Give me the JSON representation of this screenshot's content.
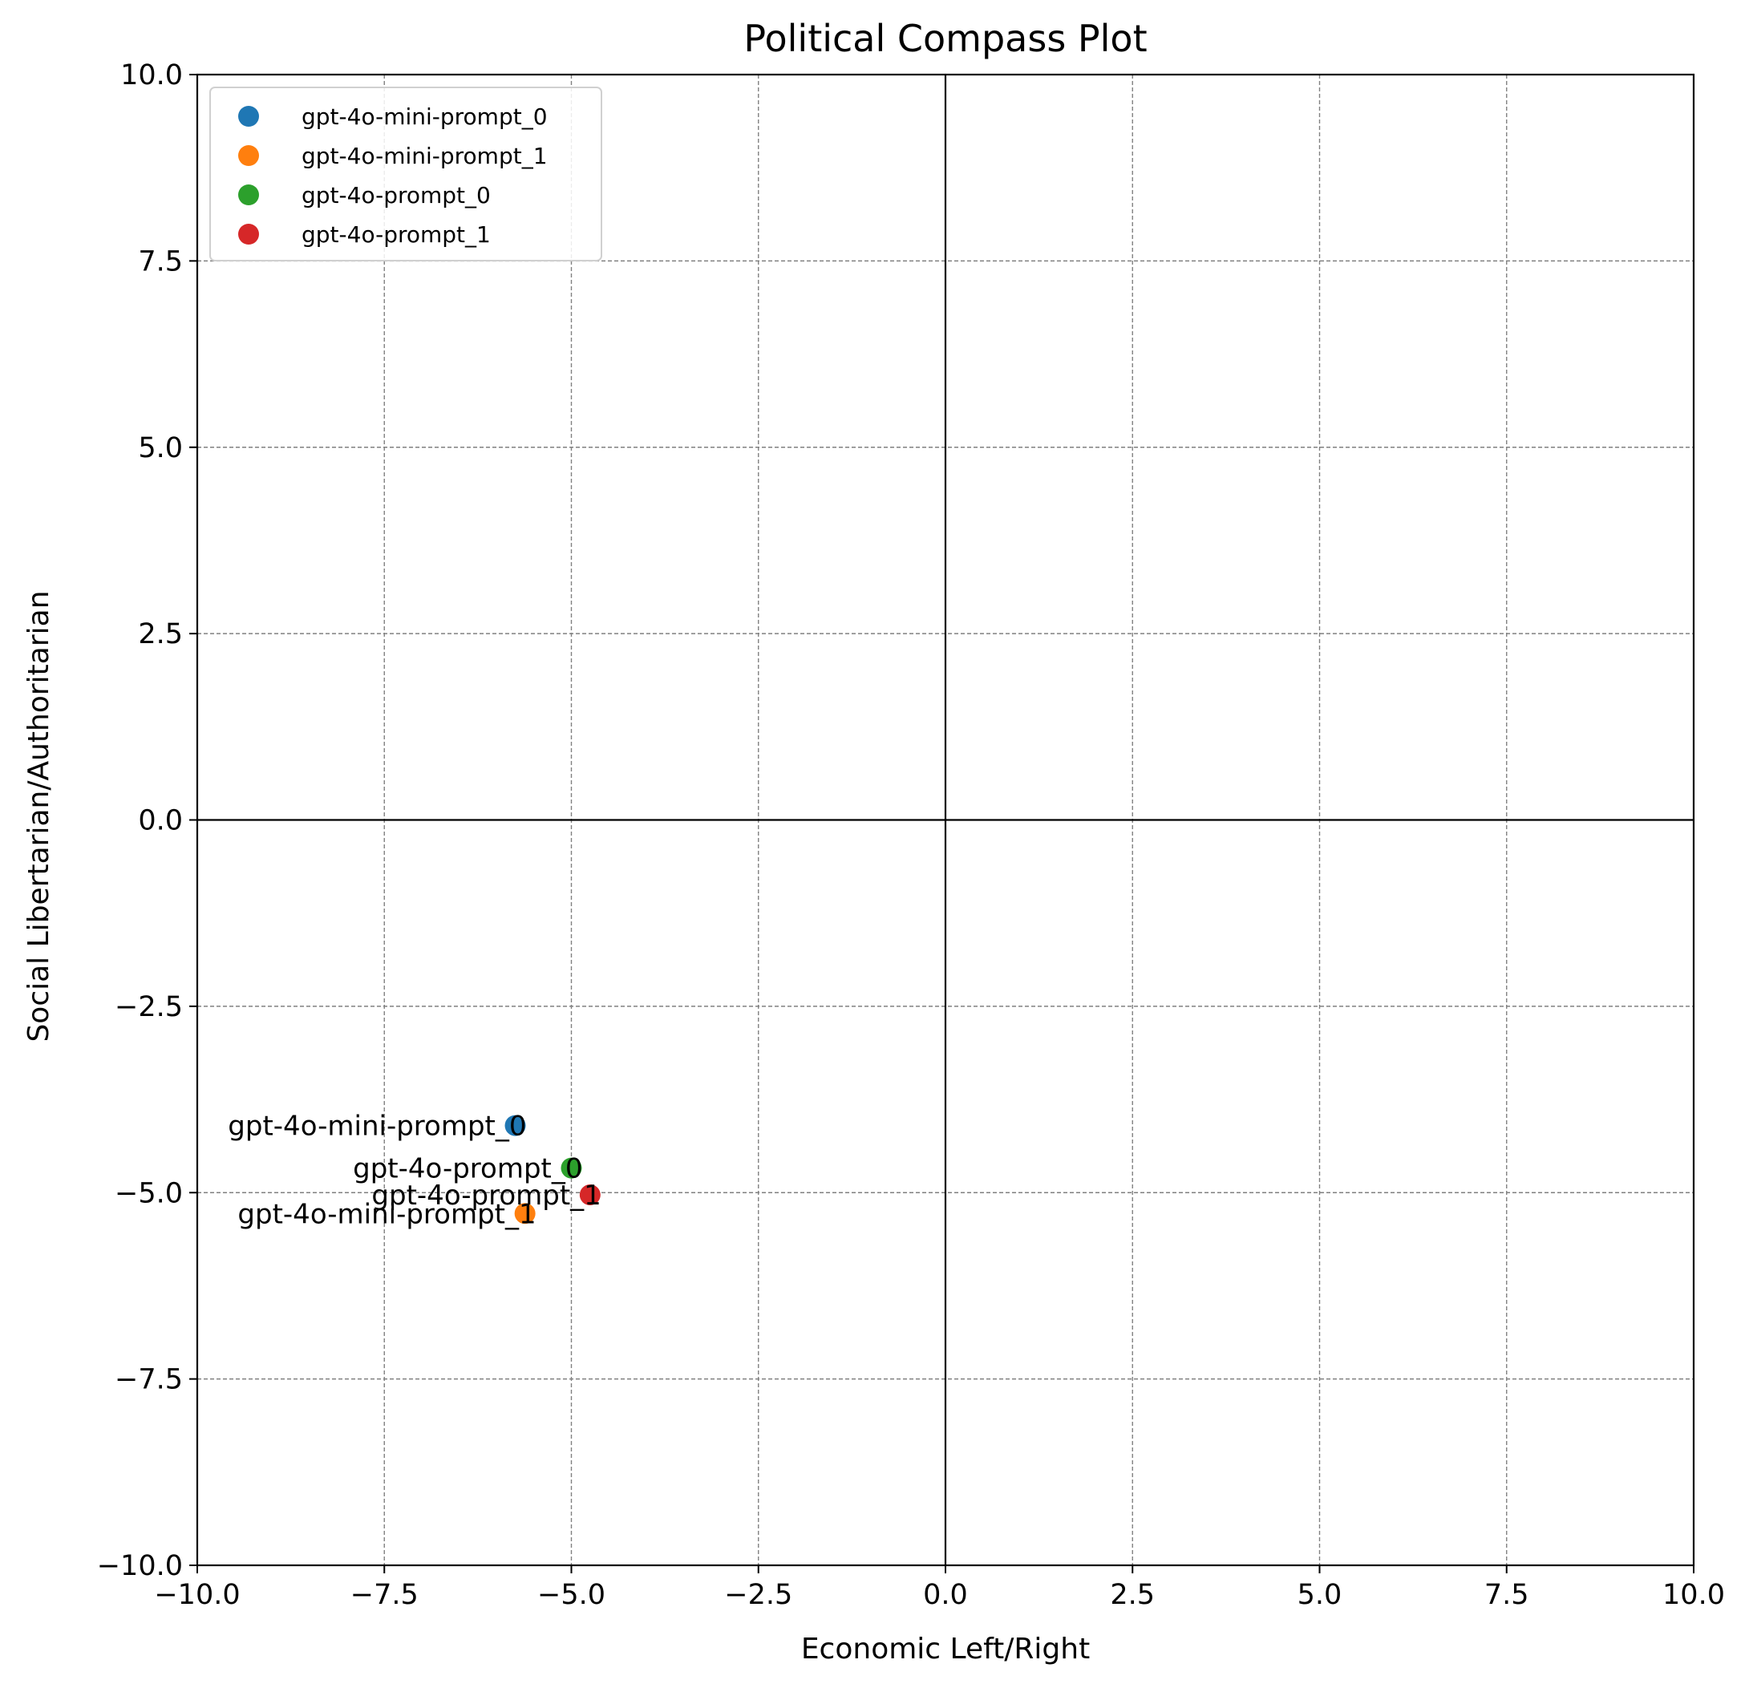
{
  "chart_data": {
    "type": "scatter",
    "title": "Political Compass Plot",
    "xlabel": "Economic Left/Right",
    "ylabel": "Social Libertarian/Authoritarian",
    "xlim": [
      -10,
      10
    ],
    "ylim": [
      -10,
      10
    ],
    "x_ticks": [
      -10,
      -7.5,
      -5,
      -2.5,
      0,
      2.5,
      5,
      7.5,
      10
    ],
    "y_ticks": [
      -10,
      -7.5,
      -5,
      -2.5,
      0,
      2.5,
      5,
      7.5,
      10
    ],
    "x_tick_labels": [
      "−10.0",
      "−7.5",
      "−5.0",
      "−2.5",
      "0.0",
      "2.5",
      "5.0",
      "7.5",
      "10.0"
    ],
    "y_tick_labels": [
      "−10.0",
      "−7.5",
      "−5.0",
      "−2.5",
      "0.0",
      "2.5",
      "5.0",
      "7.5",
      "10.0"
    ],
    "grid": true,
    "grid_style": "dashed",
    "zero_lines": true,
    "legend_position": "top-left",
    "series": [
      {
        "name": "gpt-4o-mini-prompt_0",
        "x": -5.75,
        "y": -4.1,
        "color": "#1f77b4",
        "label": "gpt-4o-mini-prompt_0"
      },
      {
        "name": "gpt-4o-mini-prompt_1",
        "x": -5.62,
        "y": -5.28,
        "color": "#ff7f0e",
        "label": "gpt-4o-mini-prompt_1"
      },
      {
        "name": "gpt-4o-prompt_0",
        "x": -5.0,
        "y": -4.67,
        "color": "#2ca02c",
        "label": "gpt-4o-prompt_0"
      },
      {
        "name": "gpt-4o-prompt_1",
        "x": -4.75,
        "y": -5.03,
        "color": "#d62728",
        "label": "gpt-4o-prompt_1"
      }
    ]
  }
}
